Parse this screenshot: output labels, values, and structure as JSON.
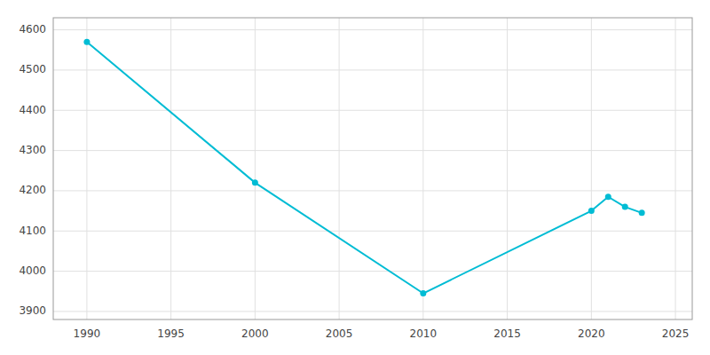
{
  "chart_data": {
    "type": "line",
    "x": [
      1990,
      2000,
      2010,
      2020,
      2021,
      2022,
      2023
    ],
    "values": [
      4570,
      4220,
      3945,
      4150,
      4185,
      4160,
      4145
    ],
    "color": "#00bcd4",
    "marker": "circle",
    "xlim": [
      1988,
      2026
    ],
    "ylim": [
      3880,
      4630
    ],
    "xticks": [
      1990,
      1995,
      2000,
      2005,
      2010,
      2015,
      2020,
      2025
    ],
    "yticks": [
      3900,
      4000,
      4100,
      4200,
      4300,
      4400,
      4500,
      4600
    ],
    "grid": true
  }
}
